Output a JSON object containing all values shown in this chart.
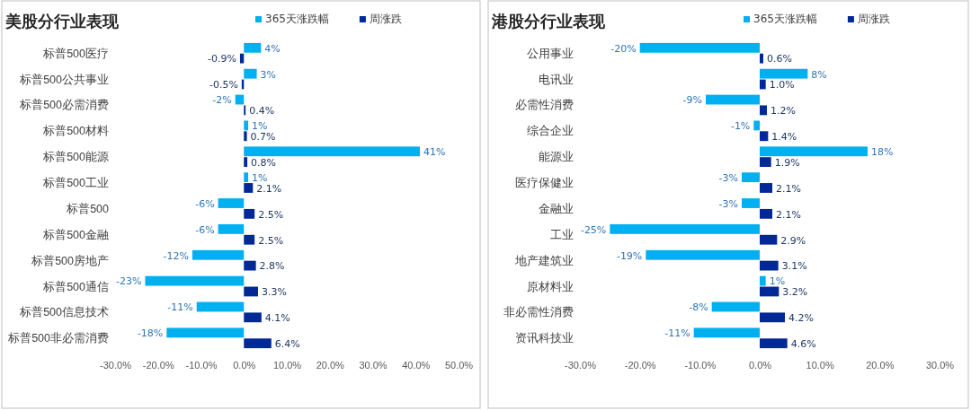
{
  "chart_data": [
    {
      "type": "bar",
      "orientation": "horizontal",
      "title": "美股分行业表现",
      "legend": "top right",
      "categories": [
        "标普500医疗",
        "标普500公共事业",
        "标普500必需消费",
        "标普500材料",
        "标普500能源",
        "标普500工业",
        "标普500",
        "标普500金融",
        "标普500房地产",
        "标普500通信",
        "标普500信息技术",
        "标普500非必需消费"
      ],
      "series": [
        {
          "name": "365天涨跌幅",
          "color": "#00b0f0",
          "values": [
            4,
            3,
            -2,
            1,
            41,
            1,
            -6,
            -6,
            -12,
            -23,
            -11,
            -18
          ],
          "value_labels": [
            "4%",
            "3%",
            "-2%",
            "1%",
            "41%",
            "1%",
            "-6%",
            "-6%",
            "-12%",
            "-23%",
            "-11%",
            "-18%"
          ]
        },
        {
          "name": "周涨跌",
          "color": "#002896",
          "values": [
            -0.9,
            -0.5,
            0.4,
            0.7,
            0.8,
            2.1,
            2.5,
            2.5,
            2.8,
            3.3,
            4.1,
            6.4
          ],
          "value_labels": [
            "-0.9%",
            "-0.5%",
            "0.4%",
            "0.7%",
            "0.8%",
            "2.1%",
            "2.5%",
            "2.5%",
            "2.8%",
            "3.3%",
            "4.1%",
            "6.4%"
          ]
        }
      ],
      "xlim": [
        -30,
        50
      ],
      "xticks": [
        {
          "value": -30,
          "label": "-30.0%"
        },
        {
          "value": -20,
          "label": "-20.0%"
        },
        {
          "value": -10,
          "label": "-10.0%"
        },
        {
          "value": 0,
          "label": "0.0%"
        },
        {
          "value": 10,
          "label": "10.0%"
        },
        {
          "value": 20,
          "label": "20.0%"
        },
        {
          "value": 30,
          "label": "30.0%"
        },
        {
          "value": 40,
          "label": "40.0%"
        },
        {
          "value": 50,
          "label": "50.0%"
        }
      ]
    },
    {
      "type": "bar",
      "orientation": "horizontal",
      "title": "港股分行业表现",
      "legend": "top right",
      "categories": [
        "公用事业",
        "电讯业",
        "必需性消费",
        "综合企业",
        "能源业",
        "医疗保健业",
        "金融业",
        "工业",
        "地产建筑业",
        "原材料业",
        "非必需性消费",
        "资讯科技业"
      ],
      "series": [
        {
          "name": "365天涨跌幅",
          "color": "#00b0f0",
          "values": [
            -20,
            8,
            -9,
            -1,
            18,
            -3,
            -3,
            -25,
            -19,
            1,
            -8,
            -11
          ],
          "value_labels": [
            "-20%",
            "8%",
            "-9%",
            "-1%",
            "18%",
            "-3%",
            "-3%",
            "-25%",
            "-19%",
            "1%",
            "-8%",
            "-11%"
          ]
        },
        {
          "name": "周涨跌",
          "color": "#002896",
          "values": [
            0.6,
            1.0,
            1.2,
            1.4,
            1.9,
            2.1,
            2.1,
            2.9,
            3.1,
            3.2,
            4.2,
            4.6
          ],
          "value_labels": [
            "0.6%",
            "1.0%",
            "1.2%",
            "1.4%",
            "1.9%",
            "2.1%",
            "2.1%",
            "2.9%",
            "3.1%",
            "3.2%",
            "4.2%",
            "4.6%"
          ]
        }
      ],
      "xlim": [
        -30,
        30
      ],
      "xticks": [
        {
          "value": -30,
          "label": "-30.0%"
        },
        {
          "value": -20,
          "label": "-20.0%"
        },
        {
          "value": -10,
          "label": "-10.0%"
        },
        {
          "value": 0,
          "label": "0.0%"
        },
        {
          "value": 10,
          "label": "10.0%"
        },
        {
          "value": 20,
          "label": "20.0%"
        },
        {
          "value": 30,
          "label": "30.0%"
        }
      ]
    }
  ]
}
